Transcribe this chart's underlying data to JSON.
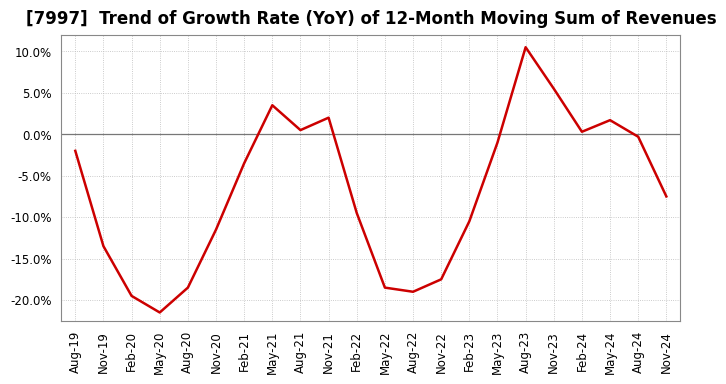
{
  "title": "[7997]  Trend of Growth Rate (YoY) of 12-Month Moving Sum of Revenues",
  "x_labels": [
    "Aug-19",
    "Nov-19",
    "Feb-20",
    "May-20",
    "Aug-20",
    "Nov-20",
    "Feb-21",
    "May-21",
    "Aug-21",
    "Nov-21",
    "Feb-22",
    "May-22",
    "Aug-22",
    "Nov-22",
    "Feb-23",
    "May-23",
    "Aug-23",
    "Nov-23",
    "Feb-24",
    "May-24",
    "Aug-24",
    "Nov-24"
  ],
  "y_values": [
    -2.0,
    -13.5,
    -19.5,
    -21.5,
    -18.5,
    -11.5,
    -3.5,
    3.5,
    0.5,
    2.0,
    -9.5,
    -18.5,
    -19.0,
    -17.5,
    -10.5,
    -1.0,
    10.5,
    5.5,
    0.3,
    1.7,
    -0.3,
    -7.5
  ],
  "line_color": "#cc0000",
  "line_width": 1.8,
  "background_color": "#ffffff",
  "plot_bg_color": "#ffffff",
  "grid_color": "#bbbbbb",
  "zero_line_color": "#777777",
  "spine_color": "#888888",
  "ylim": [
    -22.5,
    12.0
  ],
  "yticks": [
    -20.0,
    -15.0,
    -10.0,
    -5.0,
    0.0,
    5.0,
    10.0
  ],
  "title_fontsize": 12,
  "tick_fontsize": 8.5
}
